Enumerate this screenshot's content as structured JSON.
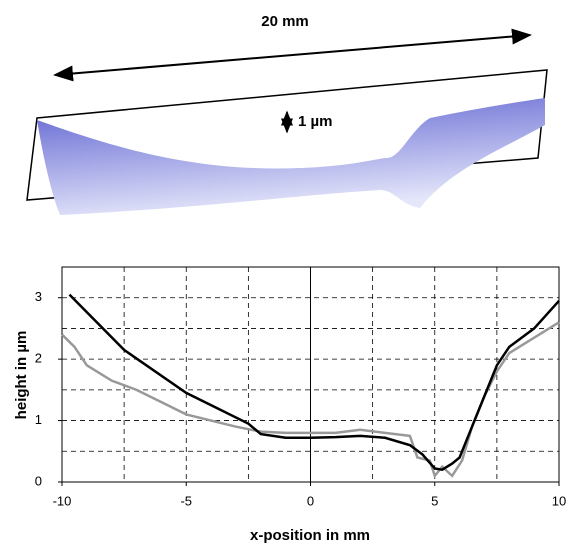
{
  "annotations": {
    "length": "20 mm",
    "height": "1 µm"
  },
  "chart_data": {
    "type": "line",
    "xlabel": "x-position in mm",
    "ylabel": "height in µm",
    "xlim": [
      -10,
      10
    ],
    "ylim": [
      0,
      3.5
    ],
    "xticks": [
      -10,
      -5,
      0,
      5,
      10
    ],
    "yticks": [
      0,
      1,
      2,
      3
    ],
    "xgrid": [
      -7.5,
      -5,
      -2.5,
      2.5,
      5,
      7.5
    ],
    "ygrid": [
      0.5,
      1,
      1.5,
      2,
      2.5,
      3
    ],
    "zero_line": 0,
    "series": [
      {
        "color": "#999999",
        "x": [
          -10,
          -9.5,
          -9,
          -8,
          -7,
          -6,
          -5,
          -4,
          -3,
          -2,
          -1,
          0,
          1,
          2,
          3,
          4,
          4.3,
          4.8,
          5,
          5.3,
          5.7,
          6.1,
          6.5,
          7,
          7.5,
          8,
          9,
          10
        ],
        "values": [
          2.4,
          2.2,
          1.9,
          1.65,
          1.5,
          1.3,
          1.1,
          1.0,
          0.9,
          0.82,
          0.8,
          0.8,
          0.8,
          0.85,
          0.8,
          0.75,
          0.4,
          0.35,
          0.1,
          0.25,
          0.1,
          0.35,
          0.9,
          1.4,
          1.8,
          2.1,
          2.35,
          2.6
        ]
      },
      {
        "color": "#000000",
        "x": [
          -9.7,
          -7.5,
          -5,
          -2.5,
          -2,
          -1,
          0,
          1,
          2,
          3,
          4,
          4.5,
          5,
          5.3,
          5.7,
          6,
          6.5,
          7,
          7.5,
          8,
          9,
          10
        ],
        "values": [
          3.05,
          2.15,
          1.45,
          0.95,
          0.78,
          0.72,
          0.72,
          0.73,
          0.75,
          0.72,
          0.6,
          0.45,
          0.22,
          0.2,
          0.3,
          0.4,
          0.9,
          1.4,
          1.9,
          2.2,
          2.5,
          2.95
        ]
      }
    ]
  }
}
